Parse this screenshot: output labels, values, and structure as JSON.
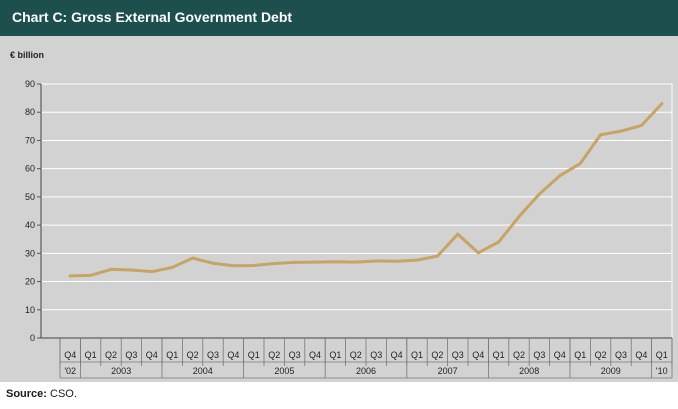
{
  "header": {
    "title": "Chart C: Gross External Government Debt"
  },
  "source": {
    "label": "Source:",
    "text": "CSO."
  },
  "colors": {
    "header_bg": "#1d4f4f",
    "panel_bg": "#d2d2d2",
    "line": "#c8a464",
    "grid": "#ffffff"
  },
  "chart_data": {
    "type": "line",
    "title": "Chart C: Gross External Government Debt",
    "ylabel": "€ billion",
    "ylim": [
      0,
      90
    ],
    "yticks": [
      0,
      10,
      20,
      30,
      40,
      50,
      60,
      70,
      80,
      90
    ],
    "grid": true,
    "quarters": [
      "Q4",
      "Q1",
      "Q2",
      "Q3",
      "Q4",
      "Q1",
      "Q2",
      "Q3",
      "Q4",
      "Q1",
      "Q2",
      "Q3",
      "Q4",
      "Q1",
      "Q2",
      "Q3",
      "Q4",
      "Q1",
      "Q2",
      "Q3",
      "Q4",
      "Q1",
      "Q2",
      "Q3",
      "Q4",
      "Q1",
      "Q2",
      "Q3",
      "Q4",
      "Q1"
    ],
    "years": [
      {
        "label": "'02",
        "count": 1
      },
      {
        "label": "2003",
        "count": 4
      },
      {
        "label": "2004",
        "count": 4
      },
      {
        "label": "2005",
        "count": 4
      },
      {
        "label": "2006",
        "count": 4
      },
      {
        "label": "2007",
        "count": 4
      },
      {
        "label": "2008",
        "count": 4
      },
      {
        "label": "2009",
        "count": 4
      },
      {
        "label": "'10",
        "count": 1
      }
    ],
    "series": [
      {
        "values": [
          22.0,
          22.2,
          24.3,
          24.1,
          23.5,
          25.0,
          28.3,
          26.5,
          25.6,
          25.7,
          26.4,
          26.8,
          26.9,
          27.0,
          26.9,
          27.3,
          27.2,
          27.6,
          29.0,
          36.8,
          30.2,
          34.0,
          43.0,
          51.0,
          57.5,
          61.8,
          72.0,
          73.3,
          75.3,
          83.0
        ]
      }
    ]
  }
}
